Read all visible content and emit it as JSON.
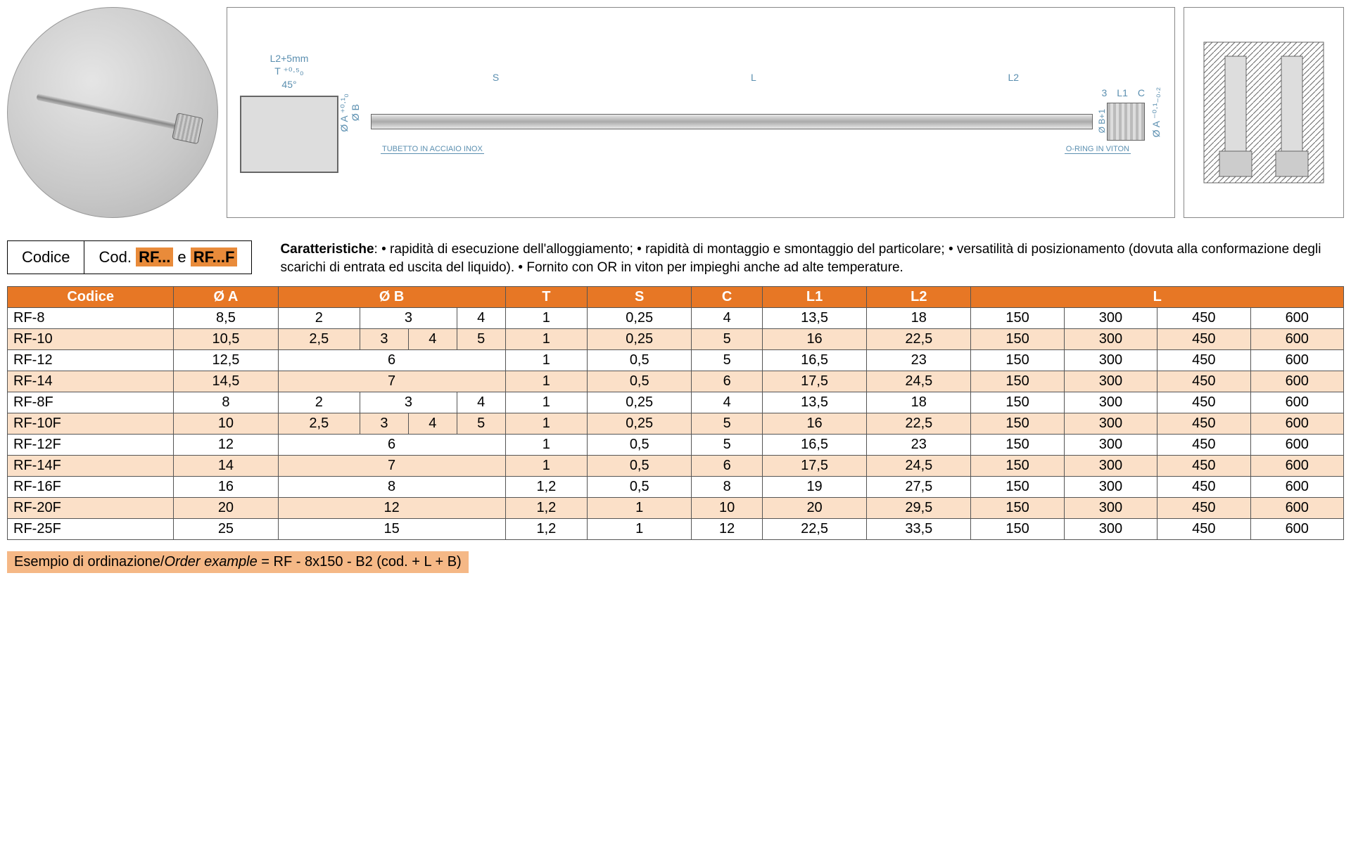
{
  "drawing_labels": {
    "l2_plus_5": "L2+5mm",
    "t_tol": "T ⁺⁰·⁵₀",
    "angle": "45°",
    "diam_a_tol1": "Ø A ⁺⁰·¹₀",
    "diam_b": "Ø B",
    "s": "S",
    "l": "L",
    "l2": "L2",
    "three": "3",
    "l1": "L1",
    "c": "C",
    "diam_b_plus1": "Ø B+1",
    "diam_a_tol2": "Ø A ⁻⁰·¹₋₀.₂",
    "tubetto": "TUBETTO IN ACCIAIO INOX",
    "oring": "O-RING IN VITON"
  },
  "codice": {
    "label": "Codice",
    "prefix": "Cod. ",
    "code1": "RF...",
    "mid": " e ",
    "code2": "RF...F"
  },
  "characteristics": {
    "title": "Caratteristiche",
    "text": ": • rapidità di esecuzione dell'alloggiamento; • rapidità di montaggio e smontaggio del particolare; • versatilità di posizionamento (dovuta alla conformazione degli scarichi di entrata ed uscita del liquido). • Fornito con OR in viton per impieghi anche ad alte temperature."
  },
  "table": {
    "headers": {
      "codice": "Codice",
      "a": "Ø A",
      "b": "Ø B",
      "t": "T",
      "s": "S",
      "c": "C",
      "l1": "L1",
      "l2": "L2",
      "l": "L"
    },
    "rows": [
      {
        "code": "RF-8",
        "a": "8,5",
        "b": [
          "2",
          "3",
          "4"
        ],
        "bspan": 4,
        "t": "1",
        "s": "0,25",
        "c": "4",
        "l1": "13,5",
        "l2": "18",
        "l": [
          "150",
          "300",
          "450",
          "600"
        ]
      },
      {
        "code": "RF-10",
        "a": "10,5",
        "b": [
          "2,5",
          "3",
          "4",
          "5"
        ],
        "bspan": 4,
        "t": "1",
        "s": "0,25",
        "c": "5",
        "l1": "16",
        "l2": "22,5",
        "l": [
          "150",
          "300",
          "450",
          "600"
        ]
      },
      {
        "code": "RF-12",
        "a": "12,5",
        "b": [
          "6"
        ],
        "bspan": 4,
        "t": "1",
        "s": "0,5",
        "c": "5",
        "l1": "16,5",
        "l2": "23",
        "l": [
          "150",
          "300",
          "450",
          "600"
        ]
      },
      {
        "code": "RF-14",
        "a": "14,5",
        "b": [
          "7"
        ],
        "bspan": 4,
        "t": "1",
        "s": "0,5",
        "c": "6",
        "l1": "17,5",
        "l2": "24,5",
        "l": [
          "150",
          "300",
          "450",
          "600"
        ]
      },
      {
        "code": "RF-8F",
        "a": "8",
        "b": [
          "2",
          "3",
          "4"
        ],
        "bspan": 4,
        "t": "1",
        "s": "0,25",
        "c": "4",
        "l1": "13,5",
        "l2": "18",
        "l": [
          "150",
          "300",
          "450",
          "600"
        ]
      },
      {
        "code": "RF-10F",
        "a": "10",
        "b": [
          "2,5",
          "3",
          "4",
          "5"
        ],
        "bspan": 4,
        "t": "1",
        "s": "0,25",
        "c": "5",
        "l1": "16",
        "l2": "22,5",
        "l": [
          "150",
          "300",
          "450",
          "600"
        ]
      },
      {
        "code": "RF-12F",
        "a": "12",
        "b": [
          "6"
        ],
        "bspan": 4,
        "t": "1",
        "s": "0,5",
        "c": "5",
        "l1": "16,5",
        "l2": "23",
        "l": [
          "150",
          "300",
          "450",
          "600"
        ]
      },
      {
        "code": "RF-14F",
        "a": "14",
        "b": [
          "7"
        ],
        "bspan": 4,
        "t": "1",
        "s": "0,5",
        "c": "6",
        "l1": "17,5",
        "l2": "24,5",
        "l": [
          "150",
          "300",
          "450",
          "600"
        ]
      },
      {
        "code": "RF-16F",
        "a": "16",
        "b": [
          "8"
        ],
        "bspan": 4,
        "t": "1,2",
        "s": "0,5",
        "c": "8",
        "l1": "19",
        "l2": "27,5",
        "l": [
          "150",
          "300",
          "450",
          "600"
        ]
      },
      {
        "code": "RF-20F",
        "a": "20",
        "b": [
          "12"
        ],
        "bspan": 4,
        "t": "1,2",
        "s": "1",
        "c": "10",
        "l1": "20",
        "l2": "29,5",
        "l": [
          "150",
          "300",
          "450",
          "600"
        ]
      },
      {
        "code": "RF-25F",
        "a": "25",
        "b": [
          "15"
        ],
        "bspan": 4,
        "t": "1,2",
        "s": "1",
        "c": "12",
        "l1": "22,5",
        "l2": "33,5",
        "l": [
          "150",
          "300",
          "450",
          "600"
        ]
      }
    ]
  },
  "example": {
    "label_it": "Esempio di ordinazione/",
    "label_en": "Order example",
    "value": " = RF - 8x150 - B2 (cod. + L + B)"
  },
  "colors": {
    "header_bg": "#e77725",
    "row_alt_bg": "#fbe0c8",
    "highlight_bg": "#e98b3a",
    "example_bg": "#f5b886",
    "dim_color": "#5b8fb0"
  }
}
